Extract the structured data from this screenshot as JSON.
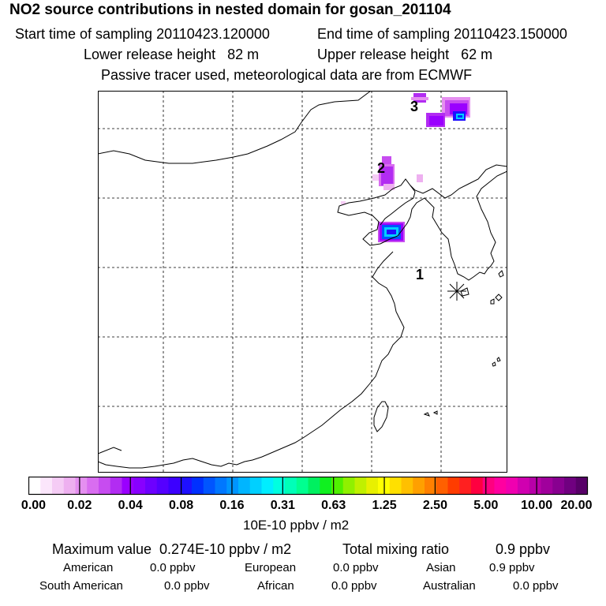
{
  "header": {
    "title": "NO2 source contributions in nested domain for gosan_201104",
    "start_label": "Start time of sampling 20110423.120000",
    "end_label": "End time of sampling 20110423.150000",
    "lower_label": "Lower release height   82 m",
    "upper_label": "Upper release height   62 m",
    "note": "Passive tracer used, meteorological data are from ECMWF"
  },
  "map": {
    "markers": [
      "1",
      "2",
      "3"
    ],
    "receptor_symbol": "asterisk"
  },
  "colorbar": {
    "ticks": [
      "0.00",
      "0.02",
      "0.04",
      "0.08",
      "0.16",
      "0.31",
      "0.63",
      "1.25",
      "2.50",
      "5.00",
      "10.00",
      "20.00"
    ],
    "colors": [
      "#ffffff",
      "#fbe6fb",
      "#f5ccf5",
      "#eeb0f0",
      "#e58ff0",
      "#d96df0",
      "#c74cf0",
      "#b22cf2",
      "#9a00ff",
      "#8800ff",
      "#6d00ff",
      "#5500ff",
      "#3c00ff",
      "#1e10ff",
      "#0030ff",
      "#0055ff",
      "#0077ff",
      "#0095ff",
      "#00b5ff",
      "#00d0ff",
      "#00eeff",
      "#00ffe0",
      "#00ffb8",
      "#00ff90",
      "#00f060",
      "#10f020",
      "#50f000",
      "#90f000",
      "#c0f000",
      "#e8f000",
      "#ffff00",
      "#ffe000",
      "#ffc000",
      "#ffa000",
      "#ff8000",
      "#ff6000",
      "#ff3c00",
      "#ff2020",
      "#ff0040",
      "#ff0080",
      "#ff00a0",
      "#f000b0",
      "#d000b0",
      "#b800a8",
      "#a0009c",
      "#880090",
      "#700080",
      "#580068"
    ],
    "unit": "10E-10 ppbv / m2"
  },
  "summary": {
    "max_label": "Maximum value  0.274E-10 ppbv / m2",
    "total_label": "Total mixing ratio",
    "total_value": "0.9 ppbv",
    "regions": [
      {
        "name": "American",
        "value": "0.0 ppbv"
      },
      {
        "name": "European",
        "value": "0.0 ppbv"
      },
      {
        "name": "Asian",
        "value": "0.9 ppbv"
      },
      {
        "name": "South American",
        "value": "0.0 ppbv"
      },
      {
        "name": "African",
        "value": "0.0 ppbv"
      },
      {
        "name": "Australian",
        "value": "0.0 ppbv"
      }
    ]
  }
}
